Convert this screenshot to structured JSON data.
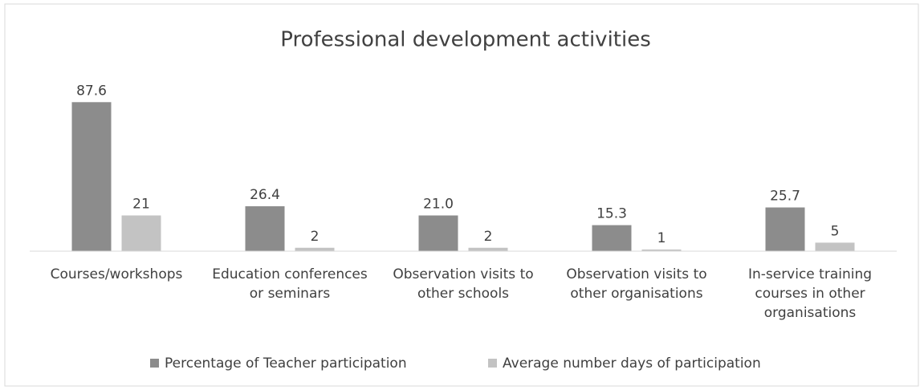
{
  "chart_data": {
    "type": "bar",
    "title": "Professional development activities",
    "categories": [
      "Courses/workshops",
      "Education conferences or seminars",
      "Observation visits to other schools",
      "Observation visits to other organisations",
      "In-service training courses in other organisations"
    ],
    "series": [
      {
        "name": "Percentage of Teacher participation",
        "color": "#8c8c8c",
        "values": [
          87.6,
          26.4,
          21.0,
          15.3,
          25.7
        ],
        "value_labels": [
          "87.6",
          "26.4",
          "21.0",
          "15.3",
          "25.7"
        ]
      },
      {
        "name": "Average number days of participation",
        "color": "#c3c3c3",
        "values": [
          21,
          2,
          2,
          1,
          5
        ]
      }
    ],
    "ylim": [
      0,
      100
    ],
    "legend": "bottom"
  }
}
